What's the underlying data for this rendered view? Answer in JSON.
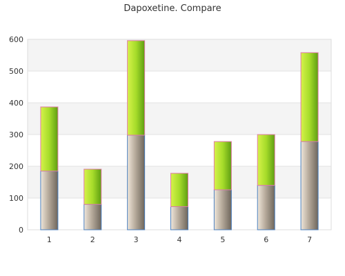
{
  "chart_data": {
    "type": "bar",
    "stacked": true,
    "title": "Dapoxetine. Compare",
    "xlabel": "",
    "ylabel": "",
    "categories": [
      "1",
      "2",
      "3",
      "4",
      "5",
      "6",
      "7"
    ],
    "ylim": [
      0,
      600
    ],
    "yticks": [
      0,
      100,
      200,
      300,
      400,
      500,
      600
    ],
    "grid": true,
    "legend": "none",
    "series": [
      {
        "values": [
          185,
          80,
          298,
          73,
          126,
          140,
          278
        ],
        "color": "#a89c8c",
        "stroke": "#4a7fbf"
      },
      {
        "values": [
          202,
          111,
          298,
          105,
          152,
          160,
          280
        ],
        "color": "#9ad428",
        "stroke": "#e07aa8"
      }
    ]
  }
}
